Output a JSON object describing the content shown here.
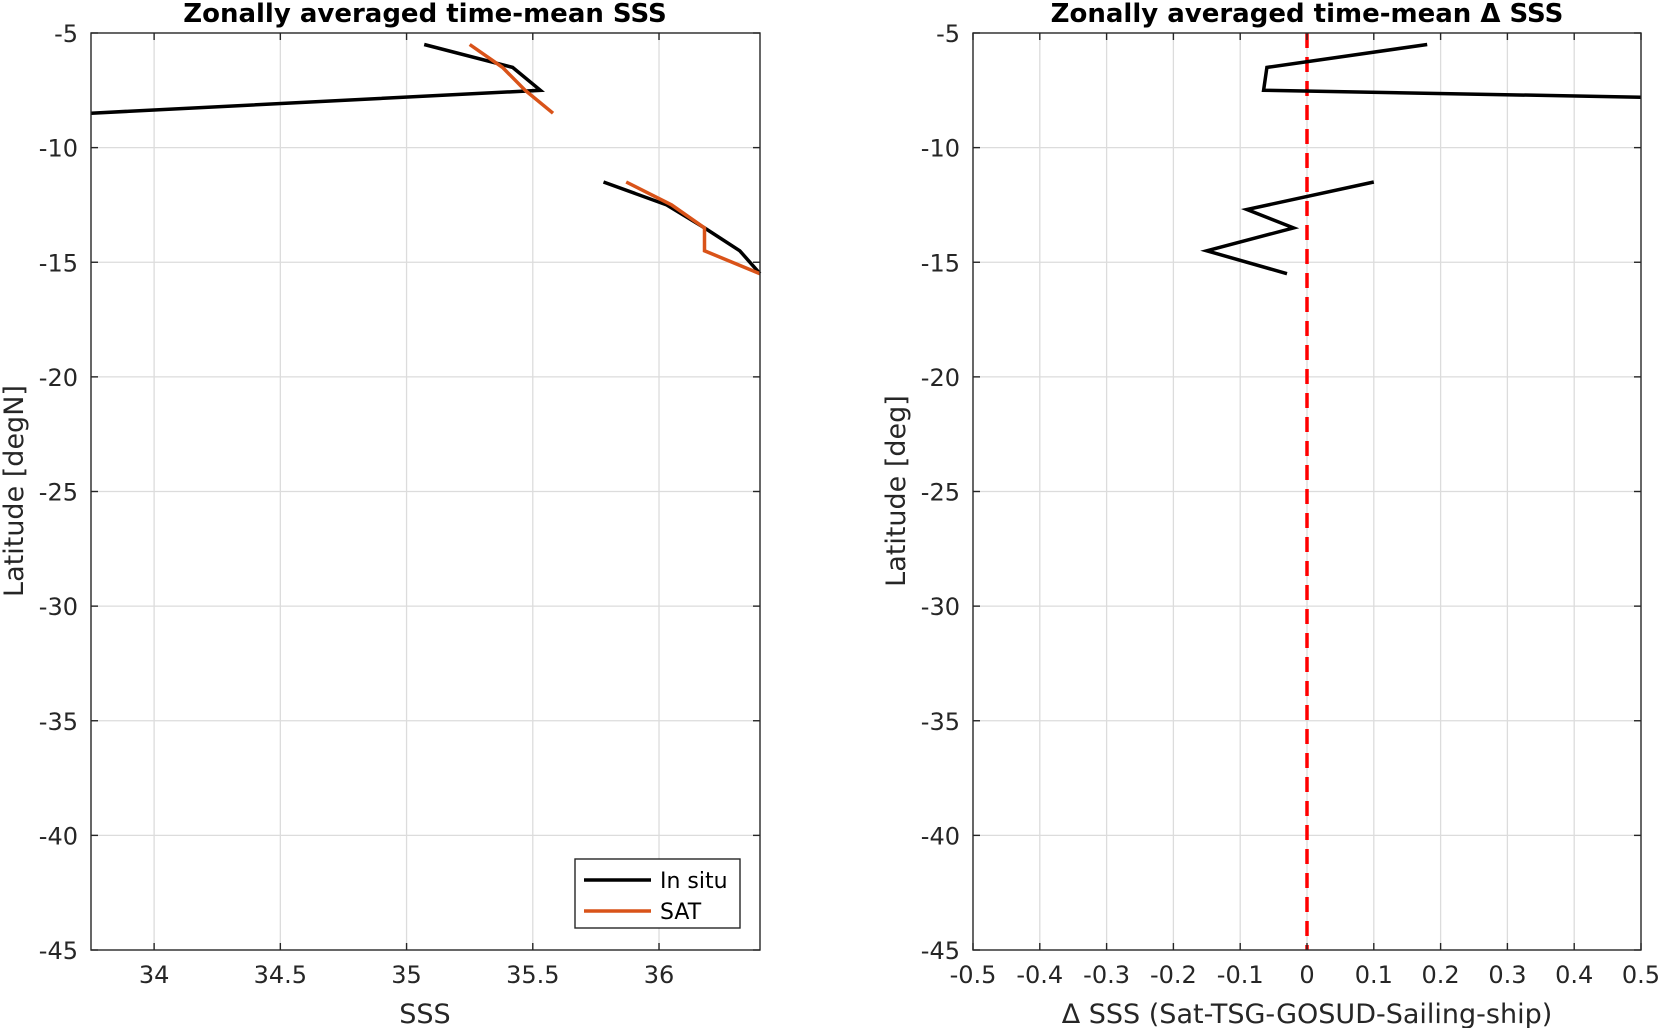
{
  "chart_data": [
    {
      "type": "line",
      "title": "Zonally averaged time-mean SSS",
      "xlabel": "SSS",
      "ylabel": "Latitude [degN]",
      "xlim": [
        33.75,
        36.4
      ],
      "ylim": [
        -45,
        -5
      ],
      "xticks": [
        34,
        34.5,
        35,
        35.5,
        36
      ],
      "xtick_labels": [
        "34",
        "34.5",
        "35",
        "35.5",
        "36"
      ],
      "yticks": [
        -5,
        -10,
        -15,
        -20,
        -25,
        -30,
        -35,
        -40,
        -45
      ],
      "ytick_labels": [
        "-5",
        "-10",
        "-15",
        "-20",
        "-25",
        "-30",
        "-35",
        "-40",
        "-45"
      ],
      "grid": true,
      "legend": "bottom-right",
      "series": [
        {
          "name": "In situ",
          "color": "#000000",
          "segments": [
            [
              [
                35.07,
                -5.5
              ],
              [
                35.42,
                -6.5
              ],
              [
                35.53,
                -7.5
              ],
              [
                33.75,
                -8.5
              ]
            ],
            [
              [
                35.78,
                -11.5
              ],
              [
                36.03,
                -12.5
              ],
              [
                36.18,
                -13.5
              ],
              [
                36.32,
                -14.5
              ],
              [
                36.4,
                -15.5
              ]
            ]
          ]
        },
        {
          "name": "SAT",
          "color": "#d95319",
          "segments": [
            [
              [
                35.25,
                -5.5
              ],
              [
                35.38,
                -6.5
              ],
              [
                35.47,
                -7.5
              ],
              [
                35.58,
                -8.5
              ]
            ],
            [
              [
                35.87,
                -11.5
              ],
              [
                36.05,
                -12.5
              ],
              [
                36.18,
                -13.5
              ],
              [
                36.18,
                -14.5
              ],
              [
                36.4,
                -15.5
              ]
            ]
          ]
        }
      ]
    },
    {
      "type": "line",
      "title": "Zonally averaged time-mean Δ SSS",
      "xlabel": "Δ SSS (Sat-TSG-GOSUD-Sailing-ship)",
      "ylabel": "Latitude [deg]",
      "xlim": [
        -0.5,
        0.5
      ],
      "ylim": [
        -45,
        -5
      ],
      "xticks": [
        -0.5,
        -0.4,
        -0.3,
        -0.2,
        -0.1,
        0,
        0.1,
        0.2,
        0.3,
        0.4,
        0.5
      ],
      "xtick_labels": [
        "-0.5",
        "-0.4",
        "-0.3",
        "-0.2",
        "-0.1",
        "0",
        "0.1",
        "0.2",
        "0.3",
        "0.4",
        "0.5"
      ],
      "yticks": [
        -5,
        -10,
        -15,
        -20,
        -25,
        -30,
        -35,
        -40,
        -45
      ],
      "ytick_labels": [
        "-5",
        "-10",
        "-15",
        "-20",
        "-25",
        "-30",
        "-35",
        "-40",
        "-45"
      ],
      "grid": true,
      "reference_line": {
        "x": 0,
        "color": "#ff0000",
        "style": "dashed"
      },
      "series": [
        {
          "color": "#000000",
          "segments": [
            [
              [
                0.18,
                -5.5
              ],
              [
                -0.06,
                -6.5
              ],
              [
                -0.065,
                -7.5
              ],
              [
                0.5,
                -7.8
              ]
            ],
            [
              [
                0.1,
                -11.5
              ],
              [
                -0.09,
                -12.7
              ],
              [
                -0.02,
                -13.5
              ],
              [
                -0.15,
                -14.5
              ],
              [
                -0.03,
                -15.5
              ]
            ]
          ]
        }
      ]
    }
  ]
}
